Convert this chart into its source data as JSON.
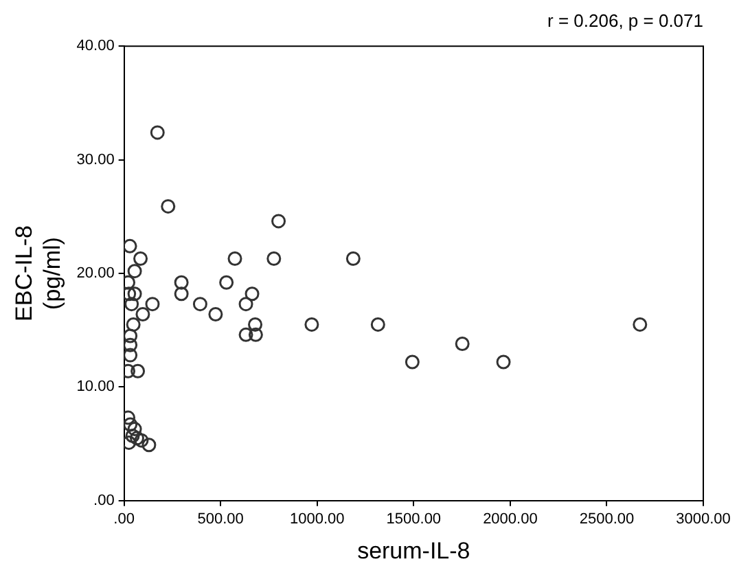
{
  "chart_data": {
    "type": "scatter",
    "xlabel": "serum-IL-8",
    "ylabel": "EBC-IL-8\n(pg/ml)",
    "annotations": [
      "r = 0.206, p = 0.071"
    ],
    "xlim": [
      0,
      3000
    ],
    "ylim": [
      0,
      40
    ],
    "xticks": [
      {
        "value": 0,
        "label": ".00"
      },
      {
        "value": 500,
        "label": "500.00"
      },
      {
        "value": 1000,
        "label": "1000.00"
      },
      {
        "value": 1500,
        "label": "1500.00"
      },
      {
        "value": 2000,
        "label": "2000.00"
      },
      {
        "value": 2500,
        "label": "2500.00"
      },
      {
        "value": 3000,
        "label": "3000.00"
      }
    ],
    "yticks": [
      {
        "value": 0,
        "label": ".00"
      },
      {
        "value": 10,
        "label": "10.00"
      },
      {
        "value": 20,
        "label": "20.00"
      },
      {
        "value": 30,
        "label": "30.00"
      },
      {
        "value": 40,
        "label": "40.00"
      }
    ],
    "grid": false,
    "legend": false,
    "marker": "circle",
    "series": [
      {
        "color": "#333333",
        "x": [
          173,
          228,
          800,
          574,
          776,
          1187,
          530,
          663,
          631,
          679,
          631,
          682,
          972,
          1315,
          2672,
          1752,
          1493,
          1965,
          297,
          297,
          147,
          394,
          474,
          30,
          85,
          55,
          21,
          55,
          25,
          39,
          97,
          48,
          32,
          32,
          32,
          21,
          71,
          21,
          32,
          55,
          67,
          25,
          90,
          129,
          44
        ],
        "values": [
          32.4,
          25.9,
          24.6,
          21.3,
          21.3,
          21.3,
          19.2,
          18.2,
          17.3,
          15.5,
          14.6,
          14.6,
          15.5,
          15.5,
          15.5,
          13.8,
          12.2,
          12.2,
          19.2,
          18.2,
          17.3,
          17.3,
          16.4,
          22.4,
          21.3,
          20.2,
          19.2,
          18.2,
          18.2,
          17.3,
          16.4,
          15.5,
          14.5,
          13.7,
          12.8,
          11.4,
          11.4,
          7.3,
          6.7,
          6.3,
          5.5,
          5.1,
          5.3,
          4.9,
          5.7
        ]
      }
    ]
  }
}
